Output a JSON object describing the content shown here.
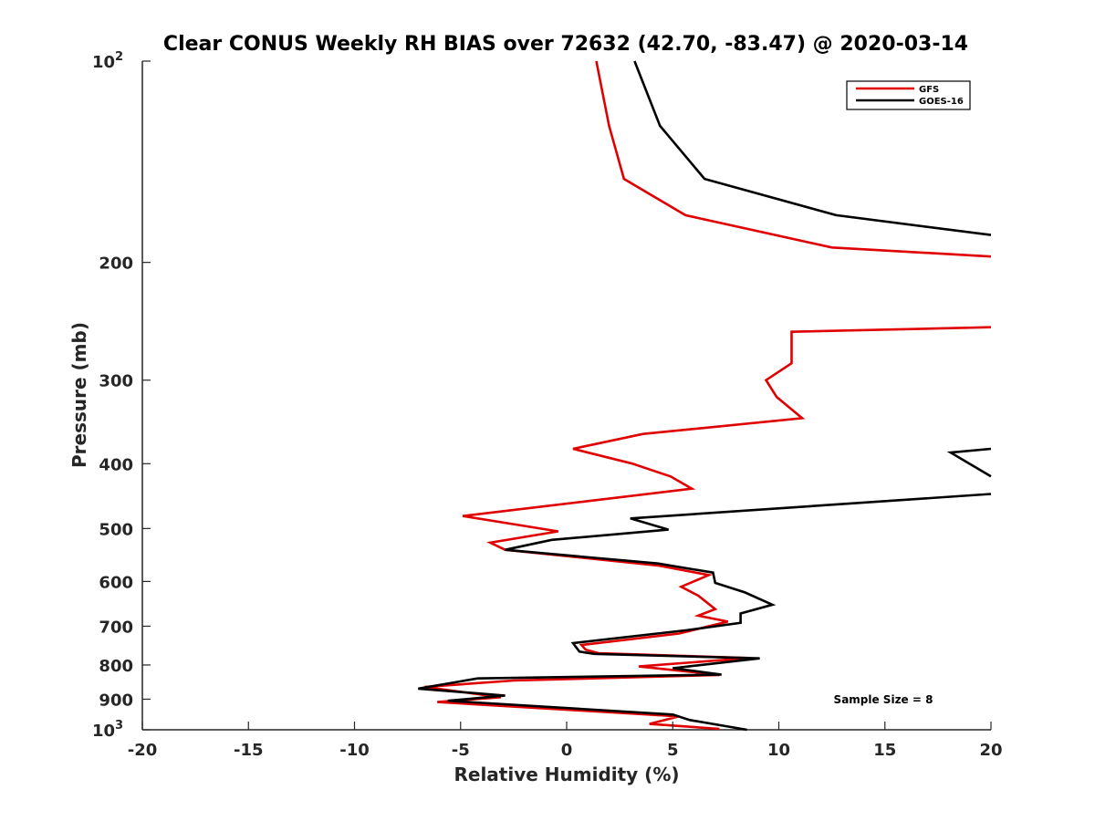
{
  "chart_data": {
    "type": "line",
    "title": "Clear CONUS Weekly RH BIAS over 72632 (42.70, -83.47) @ 2020-03-14",
    "xlabel": "Relative Humidity (%)",
    "ylabel": "Pressure (mb)",
    "xlim": [
      -20,
      20
    ],
    "ylim": [
      100,
      1000
    ],
    "yscale": "log",
    "y_reversed": true,
    "grid": false,
    "legend_position": "top-right",
    "x_ticks": [
      {
        "value": -20,
        "label": "-20"
      },
      {
        "value": -15,
        "label": "-15"
      },
      {
        "value": -10,
        "label": "-10"
      },
      {
        "value": -5,
        "label": "-5"
      },
      {
        "value": 0,
        "label": "0"
      },
      {
        "value": 5,
        "label": "5"
      },
      {
        "value": 10,
        "label": "10"
      },
      {
        "value": 15,
        "label": "15"
      },
      {
        "value": 20,
        "label": "20"
      }
    ],
    "y_ticks": [
      {
        "value": 100,
        "label": "10",
        "sup": "2"
      },
      {
        "value": 200,
        "label": "200",
        "sup": ""
      },
      {
        "value": 300,
        "label": "300",
        "sup": ""
      },
      {
        "value": 400,
        "label": "400",
        "sup": ""
      },
      {
        "value": 500,
        "label": "500",
        "sup": ""
      },
      {
        "value": 600,
        "label": "600",
        "sup": ""
      },
      {
        "value": 700,
        "label": "700",
        "sup": ""
      },
      {
        "value": 800,
        "label": "800",
        "sup": ""
      },
      {
        "value": 900,
        "label": "900",
        "sup": ""
      },
      {
        "value": 1000,
        "label": "10",
        "sup": "3"
      }
    ],
    "annotation": "Sample Size = 8",
    "series": [
      {
        "name": "GFS",
        "color": "#e00000",
        "points": [
          [
            1.4,
            100
          ],
          [
            2.0,
            125
          ],
          [
            2.7,
            150
          ],
          [
            5.6,
            170
          ],
          [
            12.5,
            190
          ],
          [
            20.0,
            196
          ],
          null,
          [
            20.0,
            250
          ],
          [
            10.6,
            254
          ],
          [
            10.6,
            283
          ],
          [
            9.4,
            300
          ],
          [
            9.9,
            318
          ],
          [
            11.1,
            342
          ],
          [
            3.6,
            361
          ],
          [
            0.3,
            380
          ],
          [
            3.1,
            400
          ],
          [
            4.9,
            418
          ],
          [
            5.9,
            436
          ],
          [
            -4.9,
            479
          ],
          [
            -0.4,
            505
          ],
          [
            -3.6,
            525
          ],
          [
            -2.9,
            538
          ],
          [
            4.3,
            568
          ],
          [
            6.7,
            587
          ],
          [
            5.4,
            611
          ],
          [
            6.2,
            630
          ],
          [
            7.0,
            660
          ],
          [
            6.2,
            675
          ],
          [
            7.6,
            689
          ],
          [
            5.3,
            718
          ],
          [
            0.7,
            747
          ],
          [
            0.9,
            759
          ],
          [
            1.5,
            768
          ],
          [
            8.6,
            781
          ],
          [
            3.4,
            804
          ],
          [
            7.2,
            828
          ],
          [
            -2.5,
            844
          ],
          [
            -6.7,
            863
          ],
          [
            -3.1,
            894
          ],
          [
            -6.1,
            909
          ],
          [
            5.3,
            955
          ],
          [
            3.9,
            980
          ],
          [
            7.2,
            997
          ]
        ]
      },
      {
        "name": "GOES-16",
        "color": "#000000",
        "points": [
          [
            3.2,
            100
          ],
          [
            4.4,
            125
          ],
          [
            6.5,
            150
          ],
          [
            12.7,
            170
          ],
          [
            20.0,
            182
          ],
          null,
          [
            20.0,
            380
          ],
          [
            18.1,
            385
          ],
          [
            20.0,
            418
          ],
          null,
          [
            20.0,
            444
          ],
          [
            3.0,
            483
          ],
          [
            4.8,
            502
          ],
          [
            -0.7,
            520
          ],
          [
            -2.9,
            538
          ],
          [
            4.3,
            564
          ],
          [
            6.9,
            582
          ],
          [
            7.0,
            603
          ],
          [
            8.4,
            623
          ],
          [
            9.7,
            650
          ],
          [
            8.2,
            670
          ],
          [
            8.2,
            692
          ],
          [
            5.6,
            710
          ],
          [
            0.3,
            742
          ],
          [
            0.6,
            764
          ],
          [
            1.3,
            770
          ],
          [
            9.1,
            782
          ],
          [
            5.0,
            809
          ],
          [
            7.3,
            827
          ],
          [
            -4.2,
            838
          ],
          [
            -7.0,
            868
          ],
          [
            -2.9,
            889
          ],
          [
            -5.6,
            905
          ],
          [
            5.0,
            949
          ],
          [
            5.8,
            967
          ],
          [
            8.5,
            1000
          ]
        ]
      }
    ]
  }
}
